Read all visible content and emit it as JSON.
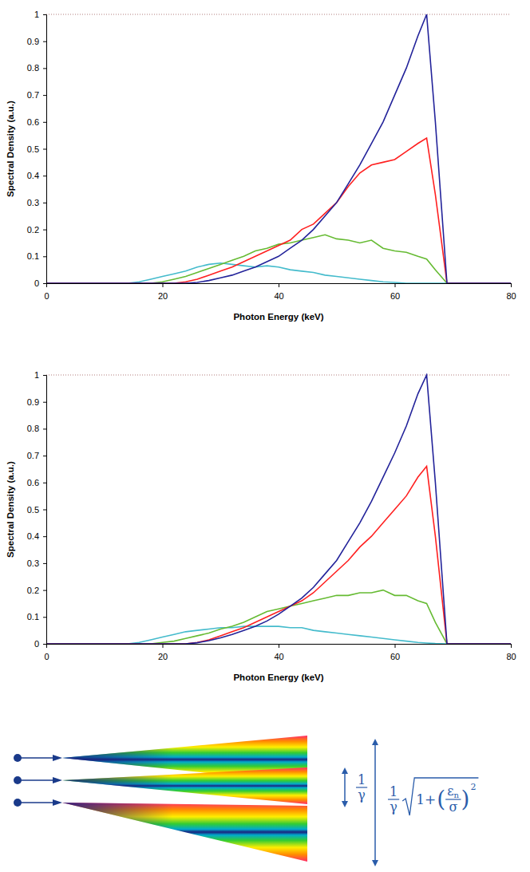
{
  "chart_data": [
    {
      "type": "line",
      "x_label": "Photon Energy (keV)",
      "y_label": "Spectral Density (a.u.)",
      "xlim": [
        0,
        80
      ],
      "xticks": [
        0,
        20,
        40,
        60,
        80
      ],
      "ylim": [
        0,
        1
      ],
      "yticks": [
        0,
        0.1,
        0.2,
        0.3,
        0.4,
        0.5,
        0.6,
        0.7,
        0.8,
        0.9,
        1
      ],
      "grid": false,
      "x": [
        0,
        14,
        16,
        18,
        20,
        22,
        24,
        26,
        28,
        30,
        32,
        34,
        36,
        38,
        40,
        42,
        44,
        46,
        48,
        50,
        52,
        54,
        56,
        58,
        60,
        62,
        64,
        65.5,
        67,
        69,
        80
      ],
      "series": [
        {
          "color": "#23239a",
          "values": [
            0,
            0,
            0,
            0,
            0,
            0,
            0,
            0.003,
            0.01,
            0.02,
            0.03,
            0.045,
            0.06,
            0.08,
            0.1,
            0.13,
            0.16,
            0.2,
            0.25,
            0.3,
            0.37,
            0.44,
            0.52,
            0.6,
            0.7,
            0.8,
            0.92,
            1.0,
            0.6,
            0,
            0
          ]
        },
        {
          "color": "#ff2020",
          "values": [
            0,
            0,
            0,
            0,
            0,
            0,
            0.005,
            0.015,
            0.03,
            0.045,
            0.06,
            0.08,
            0.1,
            0.12,
            0.14,
            0.16,
            0.2,
            0.22,
            0.26,
            0.3,
            0.36,
            0.41,
            0.44,
            0.45,
            0.46,
            0.49,
            0.52,
            0.54,
            0.33,
            0,
            0
          ]
        },
        {
          "color": "#66bb33",
          "values": [
            0,
            0,
            0,
            0,
            0.005,
            0.015,
            0.025,
            0.04,
            0.055,
            0.07,
            0.085,
            0.1,
            0.12,
            0.13,
            0.145,
            0.15,
            0.16,
            0.17,
            0.18,
            0.165,
            0.16,
            0.15,
            0.16,
            0.13,
            0.12,
            0.115,
            0.1,
            0.09,
            0.05,
            0,
            0
          ]
        },
        {
          "color": "#44bbcc",
          "values": [
            0,
            0,
            0.005,
            0.015,
            0.025,
            0.035,
            0.045,
            0.06,
            0.07,
            0.075,
            0.07,
            0.065,
            0.06,
            0.065,
            0.06,
            0.05,
            0.045,
            0.04,
            0.03,
            0.025,
            0.02,
            0.015,
            0.01,
            0.005,
            0.003,
            0,
            0,
            0,
            0,
            0,
            0
          ]
        }
      ]
    },
    {
      "type": "line",
      "x_label": "Photon Energy (keV)",
      "y_label": "Spectral Density (a.u.)",
      "xlim": [
        0,
        80
      ],
      "xticks": [
        0,
        20,
        40,
        60,
        80
      ],
      "ylim": [
        0,
        1
      ],
      "yticks": [
        0,
        0.1,
        0.2,
        0.3,
        0.4,
        0.5,
        0.6,
        0.7,
        0.8,
        0.9,
        1
      ],
      "grid": false,
      "x": [
        0,
        14,
        16,
        18,
        20,
        22,
        24,
        26,
        28,
        30,
        32,
        34,
        36,
        38,
        40,
        42,
        44,
        46,
        48,
        50,
        52,
        54,
        56,
        58,
        60,
        62,
        64,
        65.5,
        67,
        69,
        80
      ],
      "series": [
        {
          "color": "#23239a",
          "values": [
            0,
            0,
            0,
            0,
            0,
            0,
            0,
            0.004,
            0.012,
            0.022,
            0.035,
            0.05,
            0.065,
            0.085,
            0.11,
            0.14,
            0.17,
            0.21,
            0.26,
            0.31,
            0.38,
            0.45,
            0.53,
            0.62,
            0.71,
            0.81,
            0.93,
            1.0,
            0.6,
            0,
            0
          ]
        },
        {
          "color": "#ff2020",
          "values": [
            0,
            0,
            0,
            0,
            0,
            0,
            0,
            0.005,
            0.015,
            0.03,
            0.045,
            0.06,
            0.08,
            0.1,
            0.12,
            0.14,
            0.16,
            0.19,
            0.23,
            0.27,
            0.31,
            0.36,
            0.4,
            0.45,
            0.5,
            0.55,
            0.62,
            0.66,
            0.4,
            0,
            0
          ]
        },
        {
          "color": "#66bb33",
          "values": [
            0,
            0,
            0,
            0,
            0.005,
            0.01,
            0.02,
            0.03,
            0.04,
            0.055,
            0.065,
            0.08,
            0.1,
            0.12,
            0.13,
            0.14,
            0.15,
            0.16,
            0.17,
            0.18,
            0.18,
            0.19,
            0.19,
            0.2,
            0.18,
            0.18,
            0.16,
            0.15,
            0.08,
            0,
            0
          ]
        },
        {
          "color": "#44bbcc",
          "values": [
            0,
            0,
            0.005,
            0.015,
            0.025,
            0.035,
            0.045,
            0.05,
            0.055,
            0.06,
            0.06,
            0.065,
            0.065,
            0.065,
            0.065,
            0.06,
            0.06,
            0.05,
            0.045,
            0.04,
            0.035,
            0.03,
            0.025,
            0.02,
            0.015,
            0.01,
            0.005,
            0.003,
            0.001,
            0,
            0
          ]
        }
      ]
    }
  ],
  "diagram": {
    "beam_divergence": {
      "numerator": "1",
      "denominator": "γ"
    },
    "envelope": {
      "numerator": "1",
      "denominator": "γ",
      "radicand_start": "1+",
      "open": "(",
      "emittance": "ε",
      "emittance_index": "n",
      "beam_size": "σ",
      "close": ")",
      "exponent": "2"
    }
  }
}
